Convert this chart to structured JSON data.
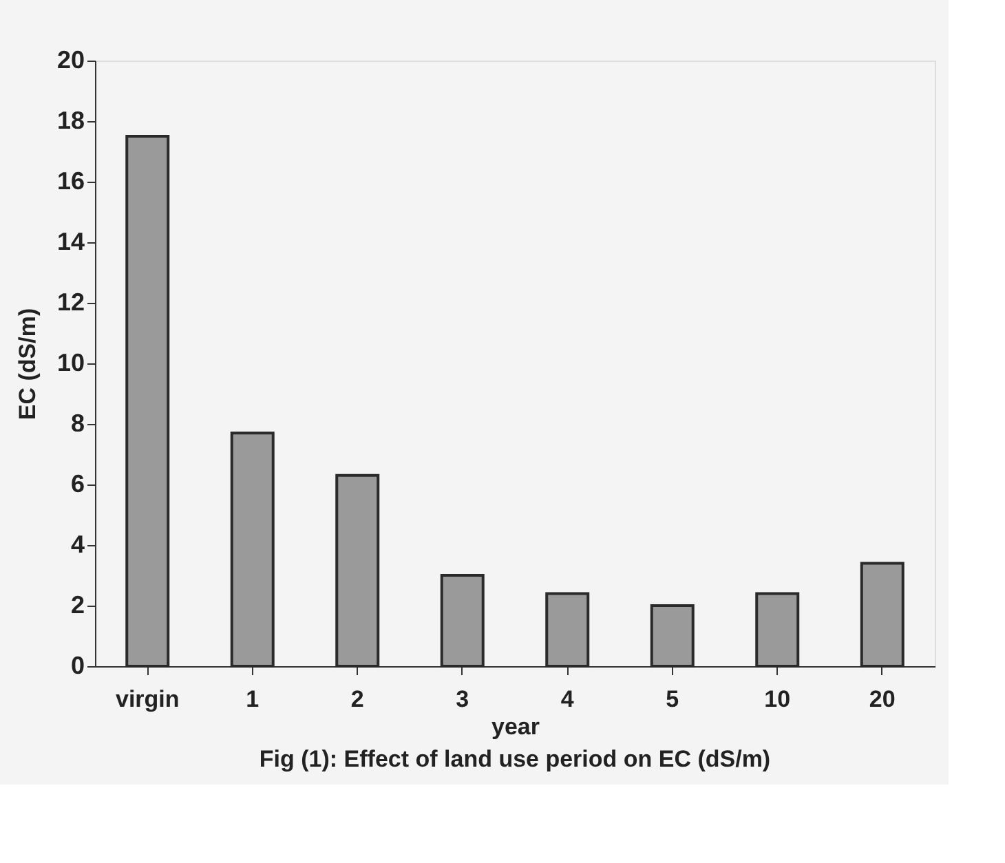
{
  "chart_data": {
    "type": "bar",
    "xlabel": "year",
    "ylabel": "EC (dS/m)",
    "categories": [
      "virgin",
      "1",
      "2",
      "3",
      "4",
      "5",
      "10",
      "20"
    ],
    "values": [
      17.5,
      7.7,
      6.3,
      3.0,
      2.4,
      2.0,
      2.4,
      3.4
    ],
    "color": "#9a9a9a",
    "ylim": [
      0,
      20
    ],
    "yticks": [
      0,
      2,
      4,
      6,
      8,
      10,
      12,
      14,
      16,
      18,
      20
    ],
    "grid": false,
    "annotations": [
      "Fig (1): Effect of land use period on EC (dS/m)"
    ]
  }
}
